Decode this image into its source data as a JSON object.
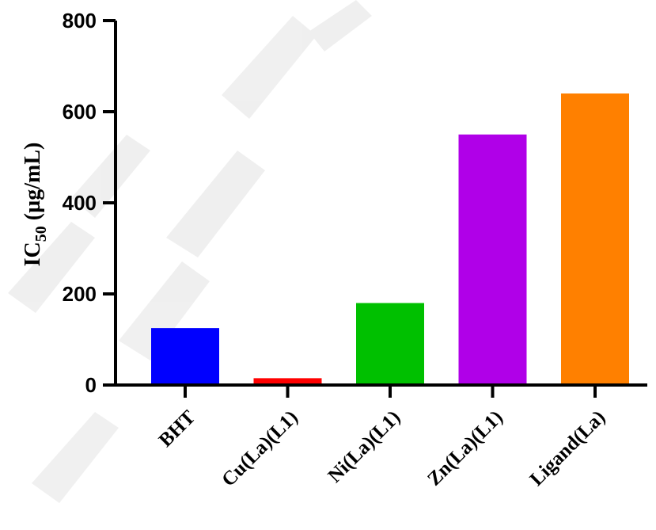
{
  "chart_data": {
    "type": "bar",
    "categories": [
      "BHT",
      "Cu(La)(L1)",
      "Ni(La)(L1)",
      "Zn(La)(L1)",
      "Ligand(La)"
    ],
    "values": [
      125,
      15,
      180,
      550,
      640
    ],
    "colors": [
      "#0000FF",
      "#FF0000",
      "#00C000",
      "#B000E8",
      "#FF8000"
    ],
    "title": "",
    "xlabel": "",
    "ylabel": {
      "main": "IC",
      "sub": "50",
      "rest": " (µg/mL)"
    },
    "ylim": [
      0,
      800
    ],
    "yticks": [
      "0",
      "200",
      "400",
      "600",
      "800"
    ],
    "grid": false,
    "legend": "none"
  }
}
